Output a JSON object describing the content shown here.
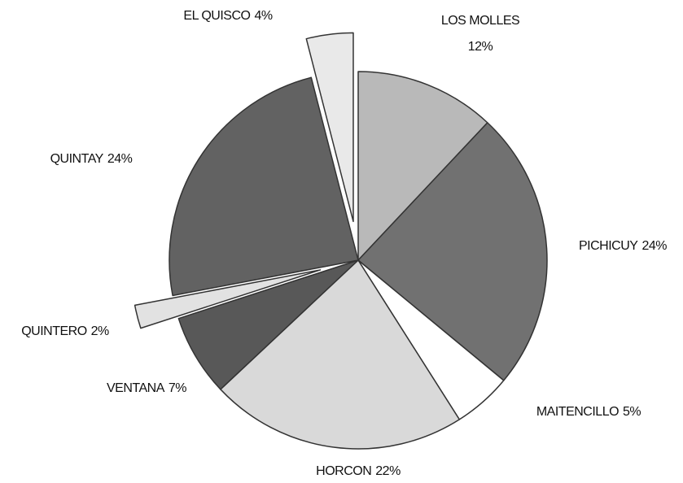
{
  "chart_data": {
    "type": "pie",
    "categories": [
      "LOS MOLLES",
      "PICHICUY",
      "MAITENCILLO",
      "HORCON",
      "VENTANA",
      "QUINTERO",
      "QUINTAY",
      "EL QUISCO"
    ],
    "values": [
      12,
      24,
      5,
      22,
      7,
      2,
      24,
      4
    ],
    "value_labels": [
      "12%",
      "24%",
      "5%",
      "22%",
      "7%",
      "2%",
      "24%",
      "4%"
    ],
    "colors": [
      "#b9b9b9",
      "#717171",
      "#ffffff",
      "#d9d9d9",
      "#585858",
      "#e2e2e2",
      "#626262",
      "#e9e9e9"
    ],
    "explode": [
      false,
      false,
      false,
      false,
      false,
      true,
      false,
      true
    ]
  }
}
